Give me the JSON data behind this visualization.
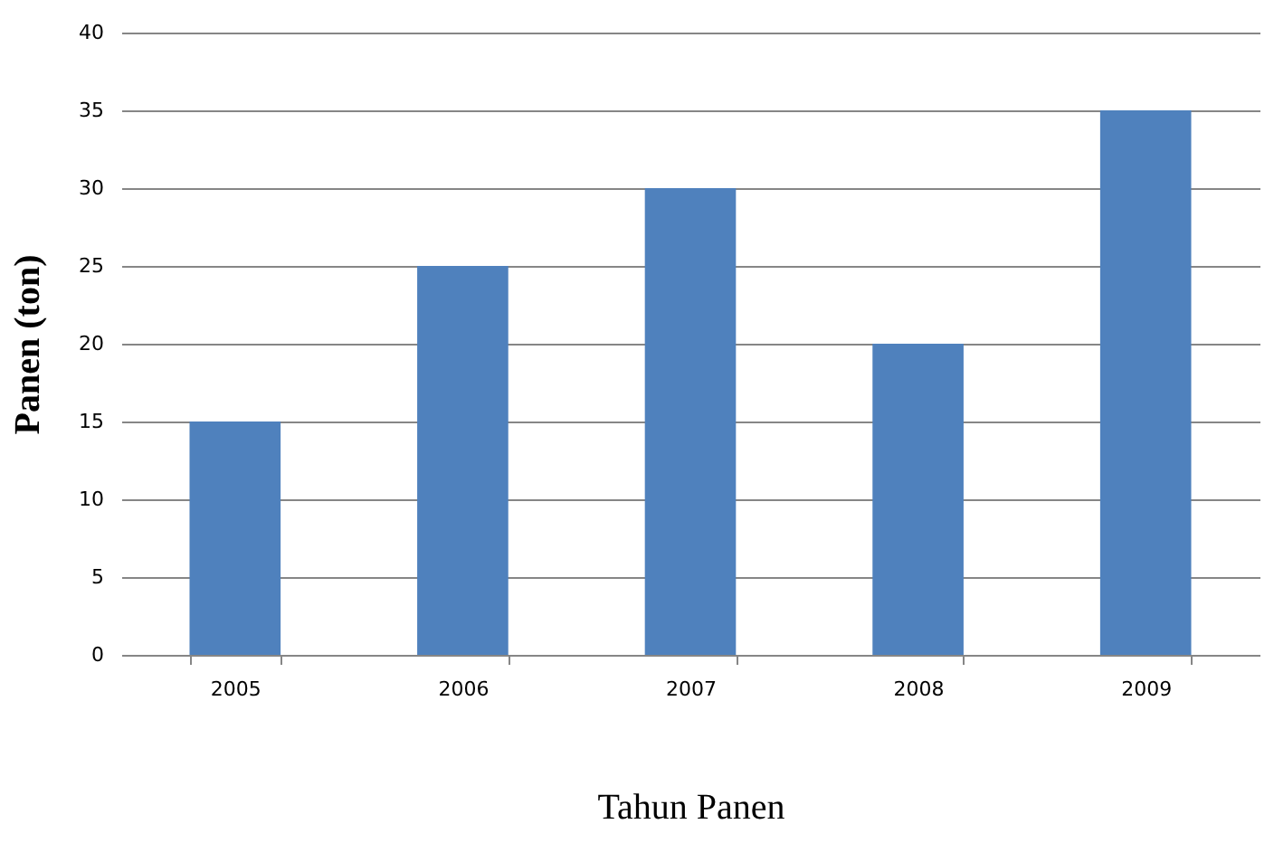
{
  "chart_data": {
    "type": "bar",
    "xlabel": "Tahun Panen",
    "ylabel": "Panen (ton)",
    "categories": [
      "2005",
      "2006",
      "2007",
      "2008",
      "2009"
    ],
    "values": [
      15,
      25,
      30,
      20,
      35
    ],
    "color": "#4f81bd",
    "ylim": [
      0,
      40
    ],
    "yticks": [
      0,
      5,
      10,
      15,
      20,
      25,
      30,
      35,
      40
    ],
    "grid": "y"
  }
}
